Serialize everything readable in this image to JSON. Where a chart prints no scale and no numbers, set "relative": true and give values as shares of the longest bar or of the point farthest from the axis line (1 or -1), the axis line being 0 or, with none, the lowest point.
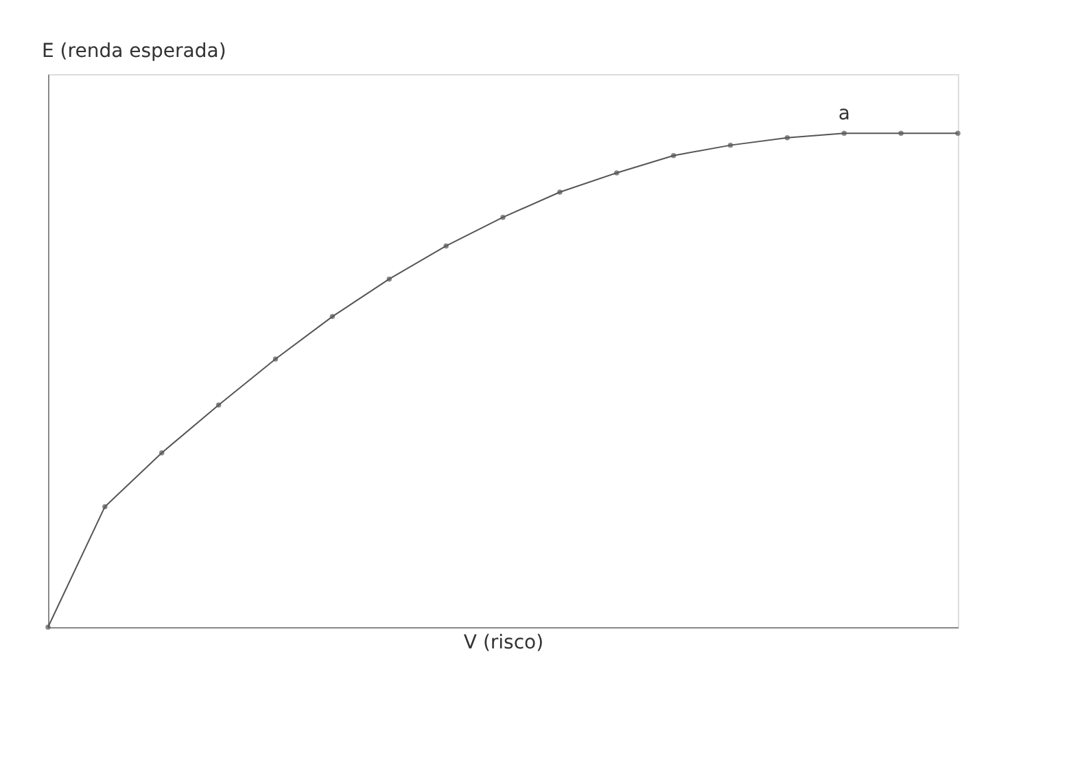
{
  "chart_data": {
    "type": "line",
    "relative": true,
    "xlabel": "V (risco)",
    "ylabel": "E (renda esperada)",
    "categories": [
      null,
      null,
      null,
      null,
      null,
      null,
      null,
      null,
      null,
      null,
      null,
      null,
      null,
      null,
      null,
      null,
      null
    ],
    "series": [
      {
        "color": "#555555",
        "values": [
          0,
          0.244,
          0.353,
          0.45,
          0.543,
          0.629,
          0.705,
          0.772,
          0.83,
          0.881,
          0.92,
          0.955,
          0.976,
          0.991,
          1,
          1,
          1
        ]
      }
    ],
    "marker": "circle",
    "line_style": "solid",
    "grid": false,
    "annotations": [
      {
        "text": "a",
        "y": 1
      }
    ]
  }
}
